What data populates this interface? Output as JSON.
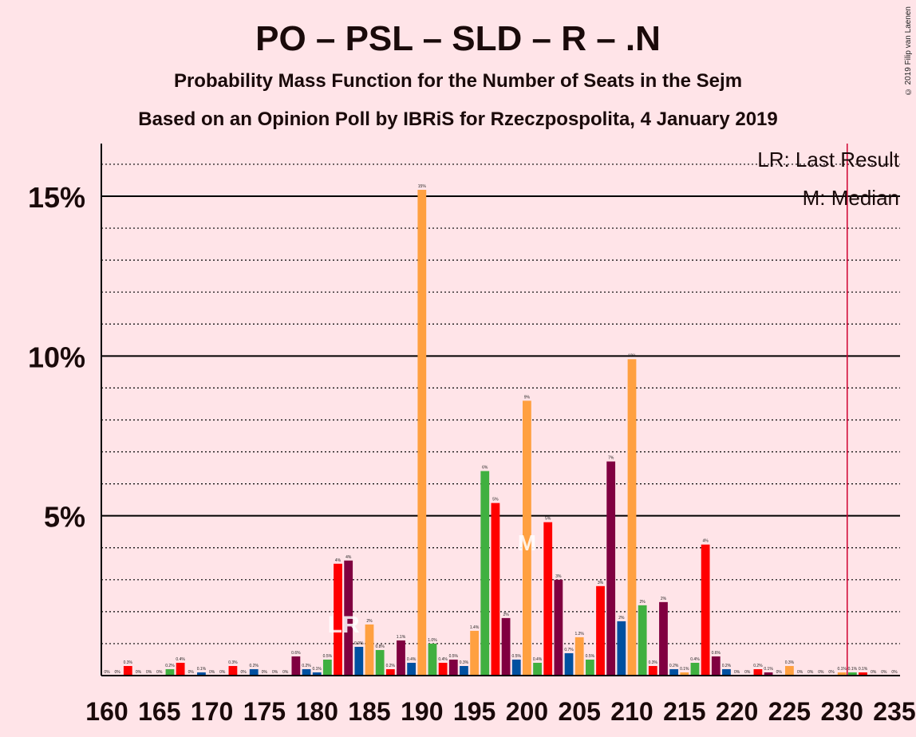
{
  "chart_data": {
    "type": "bar",
    "title": "PO – PSL – SLD – R – .N",
    "subtitle": "Probability Mass Function for the Number of Seats in the Sejm",
    "subtitle2": "Based on an Opinion Poll by IBRiS for Rzeczpospolita, 4 January 2019",
    "copyright": "© 2019 Filip van Laenen",
    "legend": [
      "LR: Last Result",
      "M: Median"
    ],
    "legend_position": "top-right",
    "last_result_marker": "LR",
    "median_marker": "M",
    "last_result_seat": 183,
    "median_seat": 200,
    "majority_seat": 231,
    "xlim": [
      160,
      235
    ],
    "ylim": [
      0,
      16.5
    ],
    "y_ticks": [
      {
        "value": 5,
        "label": "5%"
      },
      {
        "value": 10,
        "label": "10%"
      },
      {
        "value": 15,
        "label": "15%"
      }
    ],
    "x_ticks": [
      160,
      165,
      170,
      175,
      180,
      185,
      190,
      195,
      200,
      205,
      210,
      215,
      220,
      225,
      230,
      235
    ],
    "colors": {
      "orange": "#ffa040",
      "red": "#ff0000",
      "purple": "#800040",
      "blue": "#0050a0",
      "green": "#40b040"
    },
    "bars": [
      {
        "x": 160,
        "value": 0.0,
        "label": "0%",
        "color": "orange"
      },
      {
        "x": 161,
        "value": 0.0,
        "label": "0%",
        "color": "orange"
      },
      {
        "x": 162,
        "value": 0.3,
        "label": "0.3%",
        "color": "red"
      },
      {
        "x": 163,
        "value": 0.0,
        "label": "0%",
        "color": "purple"
      },
      {
        "x": 164,
        "value": 0.0,
        "label": "0%",
        "color": "blue"
      },
      {
        "x": 165,
        "value": 0.0,
        "label": "0%",
        "color": "blue"
      },
      {
        "x": 166,
        "value": 0.2,
        "label": "0.2%",
        "color": "green"
      },
      {
        "x": 167,
        "value": 0.4,
        "label": "0.4%",
        "color": "red"
      },
      {
        "x": 168,
        "value": 0.0,
        "label": "0%",
        "color": "purple"
      },
      {
        "x": 169,
        "value": 0.1,
        "label": "0.1%",
        "color": "blue"
      },
      {
        "x": 170,
        "value": 0.0,
        "label": "0%",
        "color": "green"
      },
      {
        "x": 171,
        "value": 0.0,
        "label": "0%",
        "color": "orange"
      },
      {
        "x": 172,
        "value": 0.3,
        "label": "0.3%",
        "color": "red"
      },
      {
        "x": 173,
        "value": 0.0,
        "label": "0%",
        "color": "purple"
      },
      {
        "x": 174,
        "value": 0.2,
        "label": "0.2%",
        "color": "blue"
      },
      {
        "x": 175,
        "value": 0.0,
        "label": "0%",
        "color": "green"
      },
      {
        "x": 176,
        "value": 0.0,
        "label": "0%",
        "color": "orange"
      },
      {
        "x": 177,
        "value": 0.0,
        "label": "0%",
        "color": "red"
      },
      {
        "x": 178,
        "value": 0.6,
        "label": "0.6%",
        "color": "purple"
      },
      {
        "x": 179,
        "value": 0.2,
        "label": "0.2%",
        "color": "blue"
      },
      {
        "x": 180,
        "value": 0.1,
        "label": "0.1%",
        "color": "blue"
      },
      {
        "x": 181,
        "value": 0.5,
        "label": "0.5%",
        "color": "green"
      },
      {
        "x": 182,
        "value": 3.5,
        "label": "4%",
        "color": "red"
      },
      {
        "x": 183,
        "value": 3.6,
        "label": "4%",
        "color": "purple"
      },
      {
        "x": 184,
        "value": 0.9,
        "label": "0.9%",
        "color": "blue"
      },
      {
        "x": 185,
        "value": 1.6,
        "label": "2%",
        "color": "orange"
      },
      {
        "x": 186,
        "value": 0.8,
        "label": "0.8%",
        "color": "green"
      },
      {
        "x": 187,
        "value": 0.2,
        "label": "0.2%",
        "color": "red"
      },
      {
        "x": 188,
        "value": 1.1,
        "label": "1.1%",
        "color": "purple"
      },
      {
        "x": 189,
        "value": 0.4,
        "label": "0.4%",
        "color": "blue"
      },
      {
        "x": 190,
        "value": 15.2,
        "label": "15%",
        "color": "orange"
      },
      {
        "x": 191,
        "value": 1.0,
        "label": "1.0%",
        "color": "green"
      },
      {
        "x": 192,
        "value": 0.4,
        "label": "0.4%",
        "color": "red"
      },
      {
        "x": 193,
        "value": 0.5,
        "label": "0.5%",
        "color": "purple"
      },
      {
        "x": 194,
        "value": 0.3,
        "label": "0.3%",
        "color": "blue"
      },
      {
        "x": 195,
        "value": 1.4,
        "label": "1.4%",
        "color": "orange"
      },
      {
        "x": 196,
        "value": 6.4,
        "label": "6%",
        "color": "green"
      },
      {
        "x": 197,
        "value": 5.4,
        "label": "5%",
        "color": "red"
      },
      {
        "x": 198,
        "value": 1.8,
        "label": "2%",
        "color": "purple"
      },
      {
        "x": 199,
        "value": 0.5,
        "label": "0.5%",
        "color": "blue"
      },
      {
        "x": 200,
        "value": 8.6,
        "label": "9%",
        "color": "orange"
      },
      {
        "x": 201,
        "value": 0.4,
        "label": "0.4%",
        "color": "green"
      },
      {
        "x": 202,
        "value": 4.8,
        "label": "5%",
        "color": "red"
      },
      {
        "x": 203,
        "value": 3.0,
        "label": "3%",
        "color": "purple"
      },
      {
        "x": 204,
        "value": 0.7,
        "label": "0.7%",
        "color": "blue"
      },
      {
        "x": 205,
        "value": 1.2,
        "label": "1.2%",
        "color": "orange"
      },
      {
        "x": 206,
        "value": 0.5,
        "label": "0.5%",
        "color": "green"
      },
      {
        "x": 207,
        "value": 2.8,
        "label": "3%",
        "color": "red"
      },
      {
        "x": 208,
        "value": 6.7,
        "label": "7%",
        "color": "purple"
      },
      {
        "x": 209,
        "value": 1.7,
        "label": "2%",
        "color": "blue"
      },
      {
        "x": 210,
        "value": 9.9,
        "label": "10%",
        "color": "orange"
      },
      {
        "x": 211,
        "value": 2.2,
        "label": "2%",
        "color": "green"
      },
      {
        "x": 212,
        "value": 0.3,
        "label": "0.3%",
        "color": "red"
      },
      {
        "x": 213,
        "value": 2.3,
        "label": "2%",
        "color": "purple"
      },
      {
        "x": 214,
        "value": 0.2,
        "label": "0.2%",
        "color": "blue"
      },
      {
        "x": 215,
        "value": 0.1,
        "label": "0.1%",
        "color": "orange"
      },
      {
        "x": 216,
        "value": 0.4,
        "label": "0.4%",
        "color": "green"
      },
      {
        "x": 217,
        "value": 4.1,
        "label": "4%",
        "color": "red"
      },
      {
        "x": 218,
        "value": 0.6,
        "label": "0.6%",
        "color": "purple"
      },
      {
        "x": 219,
        "value": 0.2,
        "label": "0.2%",
        "color": "blue"
      },
      {
        "x": 220,
        "value": 0.0,
        "label": "0%",
        "color": "orange"
      },
      {
        "x": 221,
        "value": 0.0,
        "label": "0%",
        "color": "green"
      },
      {
        "x": 222,
        "value": 0.2,
        "label": "0.2%",
        "color": "red"
      },
      {
        "x": 223,
        "value": 0.1,
        "label": "0.1%",
        "color": "purple"
      },
      {
        "x": 224,
        "value": 0.0,
        "label": "0%",
        "color": "blue"
      },
      {
        "x": 225,
        "value": 0.3,
        "label": "0.3%",
        "color": "orange"
      },
      {
        "x": 226,
        "value": 0.0,
        "label": "0%",
        "color": "green"
      },
      {
        "x": 227,
        "value": 0.0,
        "label": "0%",
        "color": "red"
      },
      {
        "x": 228,
        "value": 0.0,
        "label": "0%",
        "color": "purple"
      },
      {
        "x": 229,
        "value": 0.0,
        "label": "0%",
        "color": "blue"
      },
      {
        "x": 230,
        "value": 0.1,
        "label": "0.1%",
        "color": "orange"
      },
      {
        "x": 231,
        "value": 0.1,
        "label": "0.1%",
        "color": "green"
      },
      {
        "x": 232,
        "value": 0.1,
        "label": "0.1%",
        "color": "red"
      },
      {
        "x": 233,
        "value": 0.0,
        "label": "0%",
        "color": "purple"
      },
      {
        "x": 234,
        "value": 0.0,
        "label": "0%",
        "color": "blue"
      },
      {
        "x": 235,
        "value": 0.0,
        "label": "0%",
        "color": "orange"
      }
    ]
  }
}
